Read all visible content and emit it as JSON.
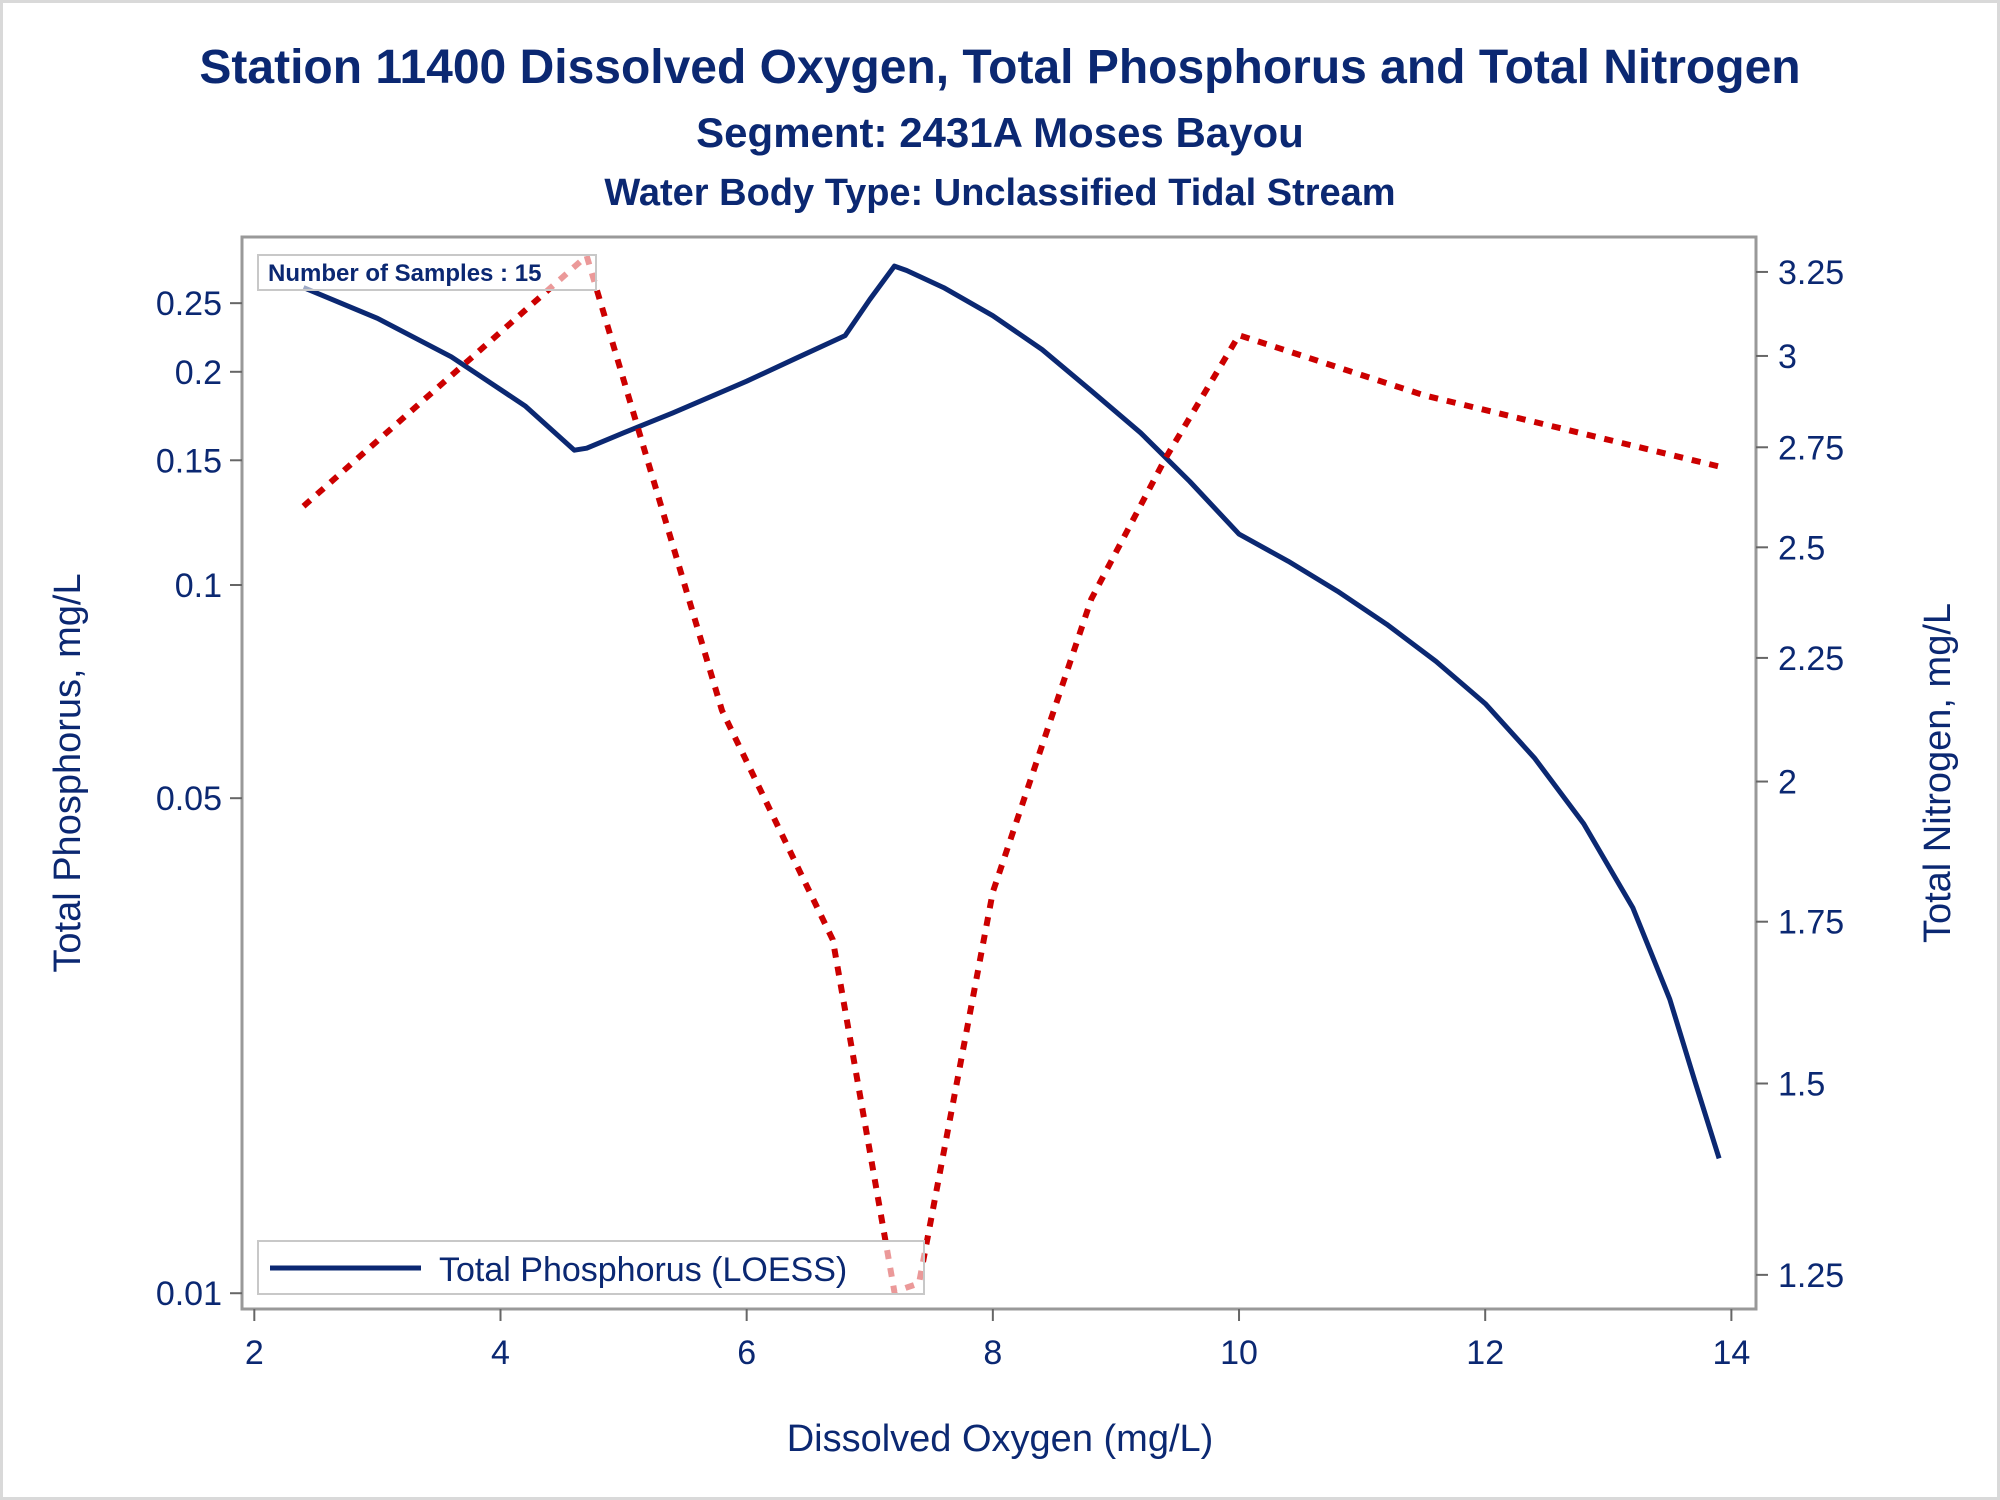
{
  "chart_data": {
    "type": "line",
    "title": "Station 11400  Dissolved Oxygen, Total Phosphorus and Total Nitrogen",
    "subtitle": "Segment: 2431A  Moses Bayou",
    "subtitle2": "Water Body Type: Unclassified Tidal Stream",
    "xlabel": "Dissolved Oxygen (mg/L)",
    "ylabel_left": "Total Phosphorus, mg/L",
    "ylabel_right": "Total Nitrogen, mg/L",
    "xlim": [
      1.9,
      14.2
    ],
    "ylim_left": [
      0.0095,
      0.31
    ],
    "y_left_scale": "log",
    "ylim_right": [
      1.21,
      3.36
    ],
    "y_right_scale": "log",
    "x_ticks": [
      "2",
      "4",
      "6",
      "8",
      "10",
      "12",
      "14"
    ],
    "x_tick_values": [
      2,
      4,
      6,
      8,
      10,
      12,
      14
    ],
    "y_left_ticks": [
      "0.25",
      "0.2",
      "0.15",
      "0.1",
      "0.05",
      "0.01"
    ],
    "y_left_tick_values": [
      0.25,
      0.2,
      0.15,
      0.1,
      0.05,
      0.01
    ],
    "y_right_ticks": [
      "3.25",
      "3",
      "2.75",
      "2.5",
      "2.25",
      "2",
      "1.75",
      "1.5",
      "1.25"
    ],
    "y_right_tick_values": [
      3.25,
      3.0,
      2.75,
      2.5,
      2.25,
      2.0,
      1.75,
      1.5,
      1.25
    ],
    "annotation": "Number of Samples : 15",
    "legend_position": "bottom-left",
    "series": [
      {
        "name": "Total Phosphorus (LOESS)",
        "axis": "left",
        "style": "solid",
        "color": "#0b2872",
        "x": [
          2.4,
          3.0,
          3.6,
          4.2,
          4.6,
          4.7,
          5.0,
          5.4,
          6.0,
          6.4,
          6.8,
          7.0,
          7.2,
          7.3,
          7.6,
          8.0,
          8.4,
          8.8,
          9.2,
          9.6,
          10.0,
          10.4,
          10.8,
          11.2,
          11.6,
          12.0,
          12.4,
          12.8,
          13.2,
          13.5,
          13.7,
          13.9
        ],
        "y": [
          0.263,
          0.238,
          0.21,
          0.179,
          0.155,
          0.156,
          0.164,
          0.175,
          0.194,
          0.209,
          0.225,
          0.253,
          0.282,
          0.278,
          0.263,
          0.24,
          0.215,
          0.188,
          0.164,
          0.14,
          0.118,
          0.108,
          0.098,
          0.088,
          0.078,
          0.068,
          0.057,
          0.046,
          0.035,
          0.026,
          0.02,
          0.0155
        ]
      },
      {
        "name": "",
        "axis": "right",
        "style": "dotted",
        "color": "#cc0000",
        "x": [
          2.4,
          4.7,
          5.8,
          6.7,
          7.2,
          7.4,
          8.0,
          8.8,
          9.4,
          10.0,
          11.5,
          13.9
        ],
        "y": [
          2.6,
          3.3,
          2.14,
          1.72,
          1.23,
          1.24,
          1.8,
          2.38,
          2.72,
          3.06,
          2.89,
          2.7
        ]
      }
    ]
  }
}
